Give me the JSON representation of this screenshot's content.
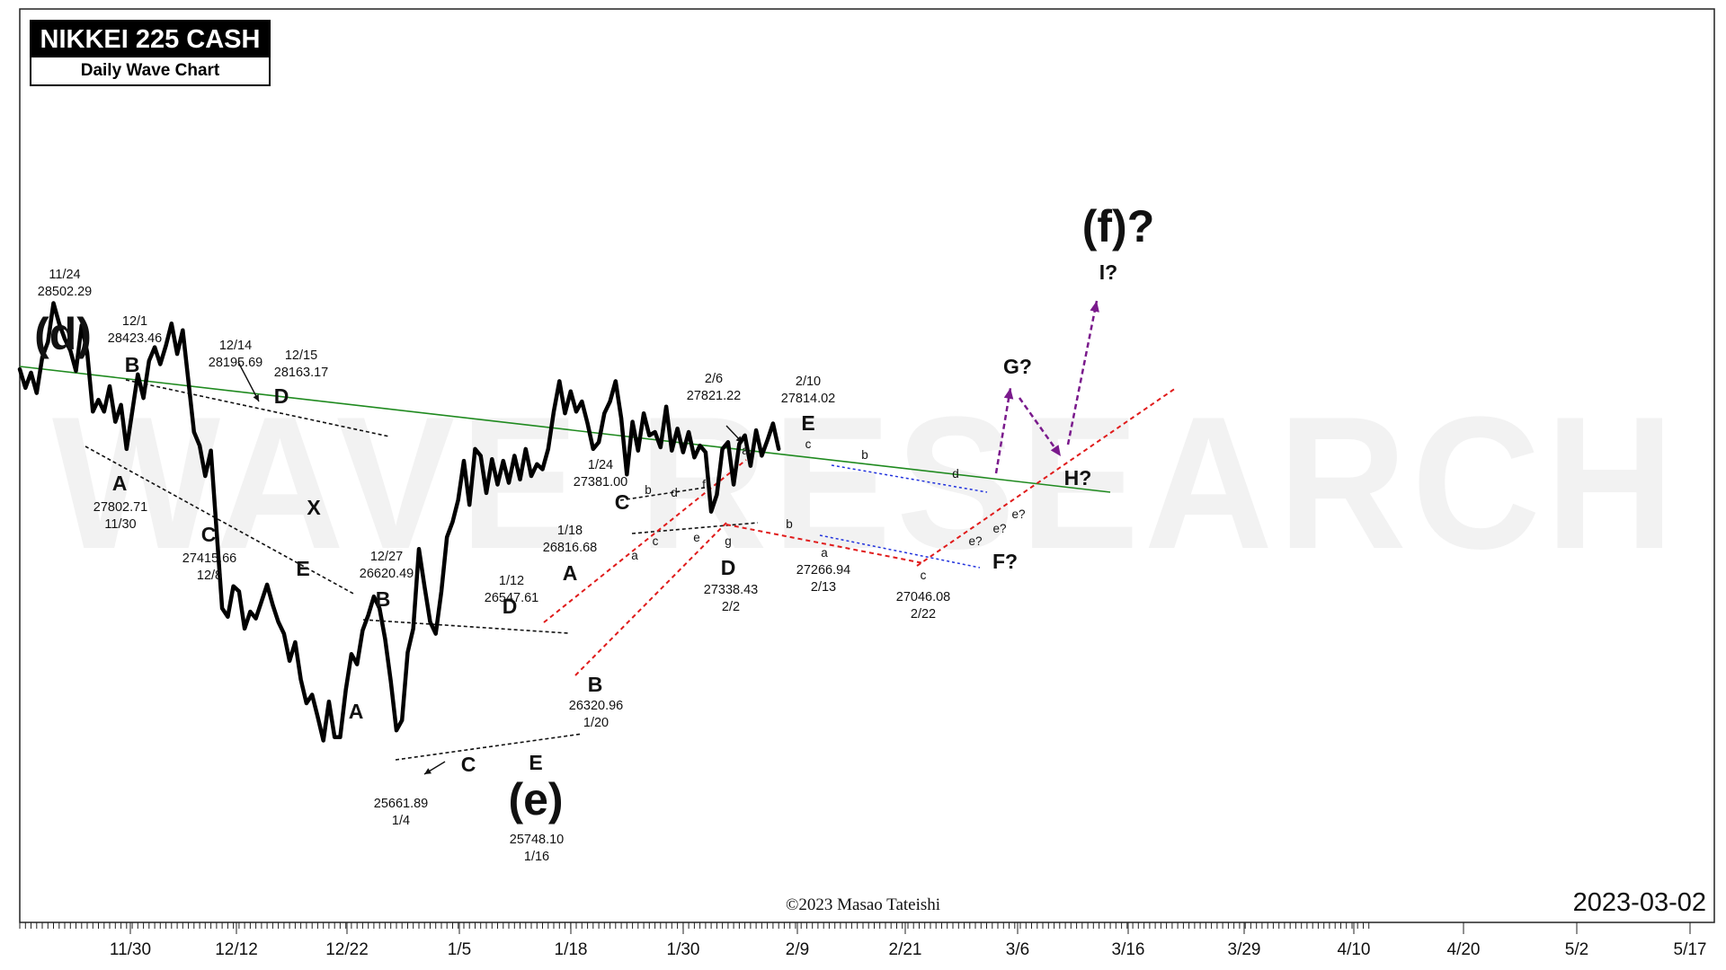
{
  "header": {
    "title": "NIKKEI 225 CASH",
    "subtitle": "Daily Wave Chart"
  },
  "watermark": "WAVE RESEARCH",
  "footer": {
    "copyright": "©2023 Masao Tateishi",
    "date": "2023-03-02"
  },
  "colors": {
    "price": "#000000",
    "main_trendline": "#1f8a1f",
    "channel_red": "#e01b1b",
    "channel_blue": "#2233dd",
    "projection": "#7a1a8c",
    "guide_black": "#111111"
  },
  "chart_data": {
    "type": "line",
    "title": "NIKKEI 225 CASH",
    "subtitle": "Daily Wave Chart",
    "ylim": [
      25300,
      29300
    ],
    "grid": false,
    "x_tick_labels": [
      "11/30",
      "12/12",
      "12/22",
      "1/5",
      "1/18",
      "1/30",
      "2/9",
      "2/21",
      "3/6",
      "3/16",
      "3/29",
      "4/10",
      "4/20",
      "5/2",
      "5/17"
    ],
    "series": [
      {
        "values": [
          [
            0,
            27890
          ],
          [
            1,
            27780
          ],
          [
            2,
            27870
          ],
          [
            3,
            27750
          ],
          [
            4,
            27960
          ],
          [
            5,
            28050
          ],
          [
            6,
            28280
          ],
          [
            7,
            28160
          ],
          [
            8,
            28070
          ],
          [
            9,
            28000
          ],
          [
            10,
            27880
          ],
          [
            11,
            28150
          ],
          [
            12,
            27990
          ],
          [
            13,
            27640
          ],
          [
            14,
            27710
          ],
          [
            15,
            27640
          ],
          [
            16,
            27790
          ],
          [
            17,
            27580
          ],
          [
            18,
            27680
          ],
          [
            19,
            27420
          ],
          [
            20,
            27640
          ],
          [
            21,
            27860
          ],
          [
            22,
            27720
          ],
          [
            23,
            27940
          ],
          [
            24,
            28020
          ],
          [
            25,
            27920
          ],
          [
            26,
            28030
          ],
          [
            27,
            28160
          ],
          [
            28,
            27980
          ],
          [
            29,
            28120
          ],
          [
            30,
            27820
          ],
          [
            31,
            27520
          ],
          [
            32,
            27440
          ],
          [
            33,
            27260
          ],
          [
            34,
            27410
          ],
          [
            35,
            26940
          ],
          [
            36,
            26480
          ],
          [
            37,
            26430
          ],
          [
            38,
            26610
          ],
          [
            39,
            26580
          ],
          [
            40,
            26360
          ],
          [
            41,
            26460
          ],
          [
            42,
            26420
          ],
          [
            43,
            26520
          ],
          [
            44,
            26620
          ],
          [
            45,
            26500
          ],
          [
            46,
            26400
          ],
          [
            47,
            26330
          ],
          [
            48,
            26170
          ],
          [
            49,
            26280
          ],
          [
            50,
            26060
          ],
          [
            51,
            25920
          ],
          [
            52,
            25970
          ],
          [
            53,
            25840
          ],
          [
            54,
            25700
          ],
          [
            55,
            25930
          ],
          [
            56,
            25720
          ],
          [
            57,
            25720
          ],
          [
            58,
            26000
          ],
          [
            59,
            26210
          ],
          [
            60,
            26150
          ],
          [
            61,
            26350
          ],
          [
            62,
            26440
          ],
          [
            63,
            26550
          ],
          [
            64,
            26480
          ],
          [
            65,
            26300
          ],
          [
            66,
            26050
          ],
          [
            67,
            25760
          ],
          [
            68,
            25820
          ],
          [
            69,
            26220
          ],
          [
            70,
            26360
          ],
          [
            71,
            26830
          ],
          [
            72,
            26610
          ],
          [
            73,
            26400
          ],
          [
            74,
            26330
          ],
          [
            75,
            26580
          ],
          [
            76,
            26900
          ],
          [
            77,
            26990
          ],
          [
            78,
            27120
          ],
          [
            79,
            27350
          ],
          [
            80,
            27090
          ],
          [
            81,
            27420
          ],
          [
            82,
            27380
          ],
          [
            83,
            27160
          ],
          [
            84,
            27360
          ],
          [
            85,
            27210
          ],
          [
            86,
            27350
          ],
          [
            87,
            27220
          ],
          [
            88,
            27380
          ],
          [
            89,
            27240
          ],
          [
            90,
            27420
          ],
          [
            91,
            27260
          ],
          [
            92,
            27330
          ],
          [
            93,
            27300
          ],
          [
            94,
            27420
          ],
          [
            95,
            27640
          ],
          [
            96,
            27820
          ],
          [
            97,
            27630
          ],
          [
            98,
            27760
          ],
          [
            99,
            27640
          ],
          [
            100,
            27700
          ],
          [
            101,
            27570
          ],
          [
            102,
            27420
          ],
          [
            103,
            27460
          ],
          [
            104,
            27630
          ],
          [
            105,
            27700
          ],
          [
            106,
            27820
          ],
          [
            107,
            27600
          ],
          [
            108,
            27270
          ],
          [
            109,
            27580
          ],
          [
            110,
            27410
          ],
          [
            111,
            27630
          ],
          [
            112,
            27500
          ],
          [
            113,
            27520
          ],
          [
            114,
            27430
          ],
          [
            115,
            27670
          ],
          [
            116,
            27410
          ],
          [
            117,
            27540
          ],
          [
            118,
            27400
          ],
          [
            119,
            27520
          ],
          [
            120,
            27370
          ],
          [
            121,
            27440
          ],
          [
            122,
            27400
          ],
          [
            123,
            27050
          ],
          [
            124,
            27150
          ],
          [
            125,
            27420
          ],
          [
            126,
            27460
          ],
          [
            127,
            27210
          ],
          [
            128,
            27450
          ],
          [
            129,
            27500
          ],
          [
            130,
            27320
          ],
          [
            131,
            27530
          ],
          [
            132,
            27380
          ],
          [
            133,
            27470
          ],
          [
            134,
            27570
          ],
          [
            135,
            27420
          ]
        ]
      }
    ],
    "annotations": [
      {
        "id": "d11_24",
        "date": "11/24",
        "value": "28502.29"
      },
      {
        "id": "d12_1",
        "date": "12/1",
        "value": "28423.46"
      },
      {
        "id": "d12_14",
        "date": "12/14",
        "value": "28195.69"
      },
      {
        "id": "d12_15",
        "date": "12/15",
        "value": "28163.17"
      },
      {
        "id": "d11_30",
        "date": "11/30",
        "value": "27802.71"
      },
      {
        "id": "d12_8",
        "date": "12/8",
        "value": "27415.66"
      },
      {
        "id": "d12_27",
        "date": "12/27",
        "value": "26620.49"
      },
      {
        "id": "d1_4",
        "date": "1/4",
        "value": "25661.89"
      },
      {
        "id": "d1_12",
        "date": "1/12",
        "value": "26547.61"
      },
      {
        "id": "d1_16",
        "date": "1/16",
        "value": "25748.10"
      },
      {
        "id": "d1_18",
        "date": "1/18",
        "value": "26816.68"
      },
      {
        "id": "d1_20",
        "date": "1/20",
        "value": "26320.96"
      },
      {
        "id": "d1_24",
        "date": "1/24",
        "value": "27381.00"
      },
      {
        "id": "d2_2",
        "date": "2/2",
        "value": "27338.43"
      },
      {
        "id": "d2_6",
        "date": "2/6",
        "value": "27821.22"
      },
      {
        "id": "d2_10",
        "date": "2/10",
        "value": "27814.02"
      },
      {
        "id": "d2_13",
        "date": "2/13",
        "value": "27266.94"
      },
      {
        "id": "d2_22",
        "date": "2/22",
        "value": "27046.08"
      }
    ],
    "wave_labels": {
      "d_big": "(d)",
      "e_big": "(e)",
      "f_big": "(f)?",
      "B1": "B",
      "A1": "A",
      "C1": "C",
      "D1": "D",
      "X1": "X",
      "E1": "E",
      "A2": "A",
      "B2": "B",
      "C2": "C",
      "D2": "D",
      "E2": "E",
      "A3": "A",
      "B3": "B",
      "C3": "C",
      "D3": "D",
      "E3": "E",
      "F3": "F?",
      "G3": "G?",
      "H3": "H?",
      "I3": "I?",
      "c_b": "b",
      "c_c": "c",
      "c_d": "d",
      "c_e": "e",
      "c_f": "f",
      "c_g": "g",
      "c_a": "a",
      "e_a": "a",
      "e_b": "b",
      "e_c": "c",
      "e_a2": "a",
      "e_b2": "b",
      "e_c2": "c",
      "e_d2": "d",
      "e_e2a": "e?",
      "e_e2b": "e?",
      "e_e2c": "e?"
    }
  }
}
